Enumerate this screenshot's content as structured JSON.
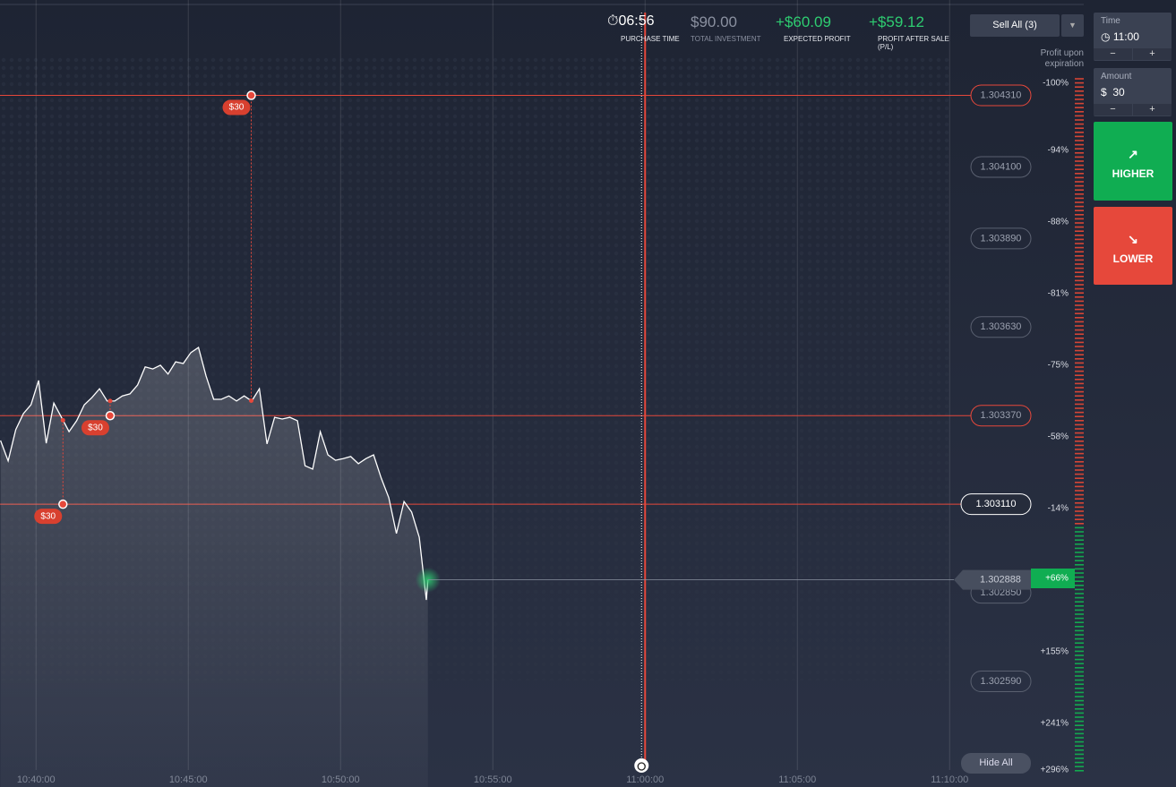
{
  "header": {
    "timer": "06:56",
    "purchase_time_label": "PURCHASE TIME",
    "total_investment": "$90.00",
    "total_investment_label": "TOTAL INVESTMENT",
    "expected_profit": "+$60.09",
    "expected_profit_label": "EXPECTED PROFIT",
    "profit_after_sale": "+$59.12",
    "profit_after_sale_label": "PROFIT AFTER SALE (P/L)"
  },
  "sell_all": "Sell All (3)",
  "profit_note": "Profit upon expiration",
  "sidebar": {
    "time_label": "Time",
    "time_value": "11:00",
    "amount_label": "Amount",
    "amount_currency": "$",
    "amount_value": "30",
    "higher": "HIGHER",
    "lower": "LOWER"
  },
  "hide_all": "Hide All",
  "chart_data": {
    "type": "line",
    "x": [
      "10:38:50",
      "10:39:05",
      "10:39:20",
      "10:39:35",
      "10:39:50",
      "10:40:05",
      "10:40:20",
      "10:40:35",
      "10:40:50",
      "10:41:05",
      "10:41:20",
      "10:41:35",
      "10:41:50",
      "10:42:05",
      "10:42:20",
      "10:42:35",
      "10:42:50",
      "10:43:05",
      "10:43:20",
      "10:43:35",
      "10:43:50",
      "10:44:05",
      "10:44:20",
      "10:44:35",
      "10:44:50",
      "10:45:05",
      "10:45:20",
      "10:45:35",
      "10:45:50",
      "10:46:05",
      "10:46:20",
      "10:46:35",
      "10:46:50",
      "10:47:05",
      "10:47:20",
      "10:47:35",
      "10:47:50",
      "10:48:05",
      "10:48:20",
      "10:48:35",
      "10:48:50",
      "10:49:05",
      "10:49:20",
      "10:49:35",
      "10:49:50",
      "10:50:05",
      "10:50:20",
      "10:50:35",
      "10:50:50",
      "10:51:05",
      "10:51:20",
      "10:51:35",
      "10:51:50",
      "10:52:05",
      "10:52:20",
      "10:52:35",
      "10:52:49",
      "10:52:52"
    ],
    "series": [
      {
        "color": "#ffffff",
        "values": [
          1.303297,
          1.303237,
          1.303329,
          1.303376,
          1.303402,
          1.303473,
          1.303289,
          1.303407,
          1.303365,
          1.303323,
          1.303355,
          1.303402,
          1.303423,
          1.303449,
          1.303413,
          1.303413,
          1.303428,
          1.303434,
          1.30346,
          1.303513,
          1.303507,
          1.303518,
          1.303492,
          1.303528,
          1.303523,
          1.303555,
          1.30357,
          1.303486,
          1.303418,
          1.303418,
          1.303428,
          1.303413,
          1.303428,
          1.303413,
          1.303449,
          1.303287,
          1.303365,
          1.30336,
          1.303365,
          1.303355,
          1.303223,
          1.303213,
          1.303323,
          1.303255,
          1.303239,
          1.303244,
          1.30325,
          1.303229,
          1.303244,
          1.303255,
          1.303187,
          1.303129,
          1.303024,
          1.303118,
          1.303087,
          1.303013,
          1.302829,
          1.302888
        ]
      }
    ],
    "xlim": [
      "10:38:49",
      "11:12:56"
    ],
    "xticks": [
      "10:40:00",
      "10:45:00",
      "10:50:00",
      "10:55:00",
      "11:00:00",
      "11:05:00",
      "11:10:00"
    ],
    "ylim": [
      1.30228,
      1.30459
    ],
    "yticks": [
      {
        "value": 1.30431,
        "label": "1.304310"
      },
      {
        "value": 1.3041,
        "label": "1.304100"
      },
      {
        "value": 1.30389,
        "label": "1.303890"
      },
      {
        "value": 1.30363,
        "label": "1.303630"
      },
      {
        "value": 1.30337,
        "label": "1.303370"
      },
      {
        "value": 1.30311,
        "label": "1.303110"
      },
      {
        "value": 1.30285,
        "label": "1.302850"
      },
      {
        "value": 1.30259,
        "label": "1.302590"
      }
    ],
    "expiration": "11:00:00",
    "selected_price": 1.30311,
    "deals": [
      {
        "time": "10:47:04",
        "price": 1.30431,
        "amount_label": "$30"
      },
      {
        "time": "10:42:26",
        "price": 1.30337,
        "amount_label": "$30"
      },
      {
        "time": "10:40:53",
        "price": 1.30311,
        "amount_label": "$30"
      }
    ],
    "profit_scale": [
      "-100%",
      "-94%",
      "-88%",
      "-81%",
      "-75%",
      "-58%",
      "-14%",
      "+66%",
      "+155%",
      "+241%",
      "+296%"
    ]
  }
}
